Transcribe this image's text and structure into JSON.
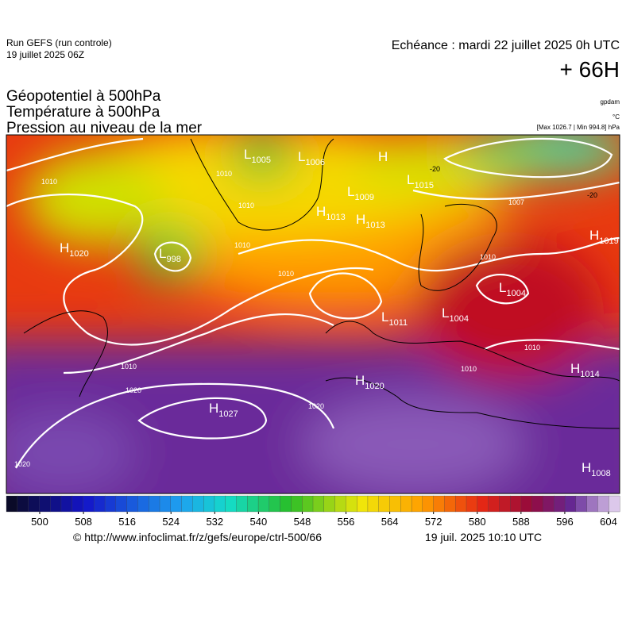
{
  "header": {
    "run": "Run GEFS (run controle)",
    "run_date": "19 juillet 2025 06Z",
    "valid": "Echéance : mardi 22 juillet 2025 0h UTC",
    "lead": "+ 66H",
    "fields": [
      "Géopotentiel à 500hPa",
      "Température à 500hPa",
      "Pression au niveau de la mer"
    ],
    "units": [
      "gpdam",
      "°C",
      "[Max 1026.7 | Min 994.8] hPa"
    ]
  },
  "map": {
    "centers": [
      {
        "letter": "H",
        "value": 1020
      },
      {
        "letter": "L",
        "value": 1005
      },
      {
        "letter": "L",
        "value": 1006
      },
      {
        "letter": "H",
        "value": null
      },
      {
        "letter": "L",
        "value": 1015
      },
      {
        "letter": "H",
        "value": 1013
      },
      {
        "letter": "L",
        "value": 1009
      },
      {
        "letter": "H",
        "value": 1013
      },
      {
        "letter": "L",
        "value": 998
      },
      {
        "letter": "H",
        "value": 1019
      },
      {
        "letter": "L",
        "value": 1004
      },
      {
        "letter": "L",
        "value": 1004
      },
      {
        "letter": "L",
        "value": 1011
      },
      {
        "letter": "H",
        "value": 1020
      },
      {
        "letter": "H",
        "value": 1027
      },
      {
        "letter": "H",
        "value": 1014
      },
      {
        "letter": "H",
        "value": 1008
      }
    ],
    "isobar_labels": [
      1010,
      1010,
      1010,
      1010,
      1010,
      1010,
      1020,
      1020,
      1020,
      1010,
      1010,
      1010,
      1007
    ],
    "isotherm_labels": [
      -20,
      -20
    ]
  },
  "colorbar": {
    "ticks": [
      500,
      508,
      516,
      524,
      532,
      540,
      548,
      556,
      564,
      572,
      580,
      588,
      596,
      604
    ]
  },
  "footer": {
    "source": "© http://www.infoclimat.fr/z/gefs/europe/ctrl-500/66",
    "generated": "19 juil. 2025 10:10 UTC"
  }
}
